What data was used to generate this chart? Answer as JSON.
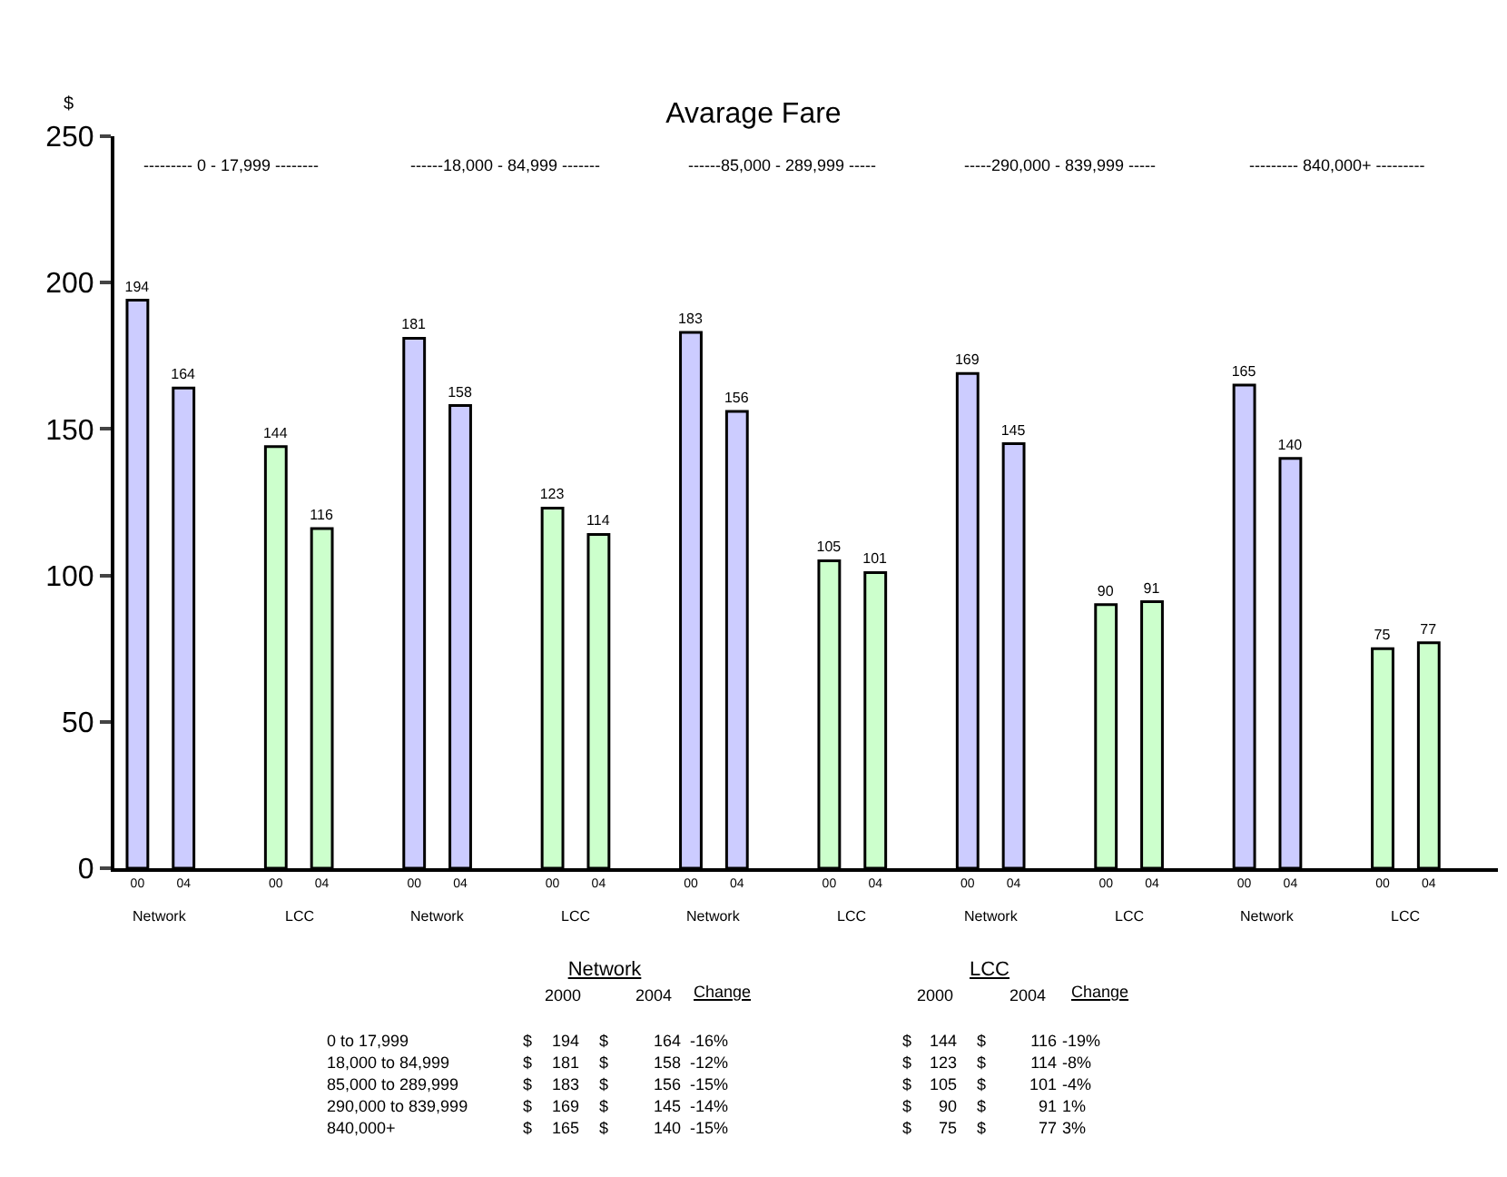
{
  "chart_data": {
    "type": "bar",
    "title": "Avarage Fare",
    "ylabel": "$",
    "categories": [
      "00",
      "04",
      null,
      "00",
      "04",
      null,
      "00",
      "04",
      null,
      "00",
      "04",
      null,
      "00",
      "04",
      null,
      "00",
      "04",
      null,
      "00",
      "04",
      null,
      "00",
      "04",
      null,
      "00",
      "04",
      null,
      "00",
      "04",
      null
    ],
    "series": [
      {
        "color": "#ccccff",
        "values": [
          194,
          164,
          null,
          null,
          null,
          null,
          181,
          158,
          null,
          null,
          null,
          null,
          183,
          156,
          null,
          null,
          null,
          null,
          169,
          145,
          null,
          null,
          null,
          null,
          165,
          140,
          null,
          null,
          null,
          null
        ]
      },
      {
        "color": "#ccffcc",
        "values": [
          null,
          null,
          null,
          144,
          116,
          null,
          null,
          null,
          null,
          123,
          114,
          null,
          null,
          null,
          null,
          105,
          101,
          null,
          null,
          null,
          null,
          90,
          91,
          null,
          null,
          null,
          null,
          75,
          77,
          null
        ]
      }
    ],
    "ylim": [
      0,
      250
    ],
    "yticks": [
      0,
      50,
      100,
      150,
      200,
      250
    ],
    "grid": false,
    "data_labels": true,
    "annotations": [
      "--------- 0 - 17,999 --------",
      "------18,000 - 84,999 -------",
      "------85,000 - 289,999 -----",
      "-----290,000 - 839,999 -----",
      "--------- 840,000+ ---------",
      "Network",
      "LCC",
      "Network",
      "LCC",
      "Network",
      "LCC",
      "Network",
      "LCC",
      "Network",
      "LCC",
      "Network",
      "2000",
      "2004",
      "Change",
      "LCC",
      "2000",
      "2004",
      "Change",
      "0 to 17,999",
      "$",
      "194",
      "$",
      "164",
      "-16%",
      "$",
      "144",
      "$",
      "116",
      "-19%",
      "18,000 to 84,999",
      "$",
      "181",
      "$",
      "158",
      "-12%",
      "$",
      "123",
      "$",
      "114",
      "-8%",
      "85,000 to 289,999",
      "$",
      "183",
      "$",
      "156",
      "-15%",
      "$",
      "105",
      "$",
      "101",
      "-4%",
      "290,000 to 839,999",
      "$",
      "169",
      "$",
      "145",
      "-14%",
      "$",
      "90",
      "$",
      "91",
      "1%",
      "840,000+",
      "$",
      "165",
      "$",
      "140",
      "-15%",
      "$",
      "75",
      "$",
      "77",
      "3%"
    ]
  }
}
